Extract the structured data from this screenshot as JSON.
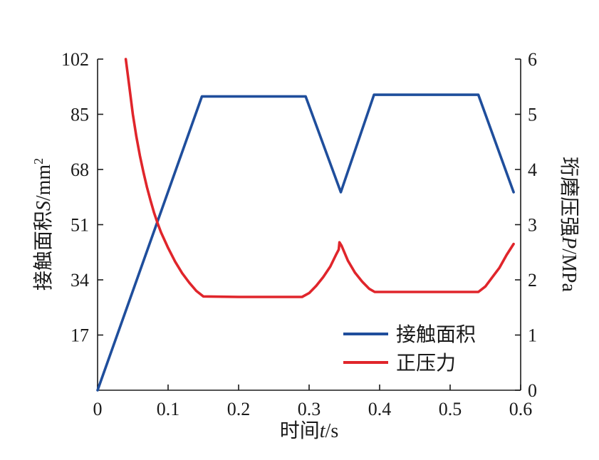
{
  "chart_data": {
    "type": "line",
    "xlabel": {
      "prefix": "时间",
      "var": "t",
      "unit": "/s"
    },
    "ylabel_left": {
      "prefix": "接触面积",
      "var": "S",
      "unit": "/mm",
      "sup": "2"
    },
    "ylabel_right": {
      "prefix": "珩磨压强",
      "var": "P",
      "unit": "/MPa"
    },
    "xlim": [
      0,
      0.6
    ],
    "ylim_left": [
      0,
      102
    ],
    "ylim_right": [
      0,
      6
    ],
    "x_ticks": [
      "0",
      "0.1",
      "0.2",
      "0.3",
      "0.4",
      "0.5",
      "0.6"
    ],
    "y_left_ticks": [
      "17",
      "34",
      "51",
      "68",
      "85",
      "102"
    ],
    "y_right_ticks": [
      "0",
      "1",
      "2",
      "3",
      "4",
      "5",
      "6"
    ],
    "grid": false,
    "legend_position": "bottom-right",
    "series": [
      {
        "name": "接触面积",
        "axis": "left",
        "color": "#1f4e9c",
        "points": [
          [
            0,
            0
          ],
          [
            0.148,
            90.5
          ],
          [
            0.295,
            90.5
          ],
          [
            0.345,
            61
          ],
          [
            0.392,
            91
          ],
          [
            0.54,
            91
          ],
          [
            0.59,
            61
          ]
        ]
      },
      {
        "name": "正压力",
        "axis": "right",
        "color": "#e0252b",
        "points": [
          [
            0.04,
            6.0
          ],
          [
            0.045,
            5.5
          ],
          [
            0.05,
            5.0
          ],
          [
            0.055,
            4.6
          ],
          [
            0.06,
            4.25
          ],
          [
            0.065,
            3.95
          ],
          [
            0.07,
            3.68
          ],
          [
            0.075,
            3.44
          ],
          [
            0.08,
            3.22
          ],
          [
            0.085,
            3.03
          ],
          [
            0.09,
            2.86
          ],
          [
            0.1,
            2.58
          ],
          [
            0.11,
            2.33
          ],
          [
            0.12,
            2.12
          ],
          [
            0.13,
            1.95
          ],
          [
            0.14,
            1.8
          ],
          [
            0.15,
            1.7
          ],
          [
            0.2,
            1.69
          ],
          [
            0.25,
            1.69
          ],
          [
            0.29,
            1.69
          ],
          [
            0.3,
            1.76
          ],
          [
            0.31,
            1.89
          ],
          [
            0.32,
            2.05
          ],
          [
            0.33,
            2.24
          ],
          [
            0.338,
            2.45
          ],
          [
            0.342,
            2.55
          ],
          [
            0.343,
            2.68
          ],
          [
            0.346,
            2.62
          ],
          [
            0.355,
            2.35
          ],
          [
            0.365,
            2.13
          ],
          [
            0.375,
            1.97
          ],
          [
            0.385,
            1.84
          ],
          [
            0.393,
            1.78
          ],
          [
            0.45,
            1.78
          ],
          [
            0.5,
            1.78
          ],
          [
            0.54,
            1.78
          ],
          [
            0.55,
            1.88
          ],
          [
            0.56,
            2.05
          ],
          [
            0.57,
            2.22
          ],
          [
            0.58,
            2.45
          ],
          [
            0.59,
            2.65
          ]
        ]
      }
    ]
  }
}
